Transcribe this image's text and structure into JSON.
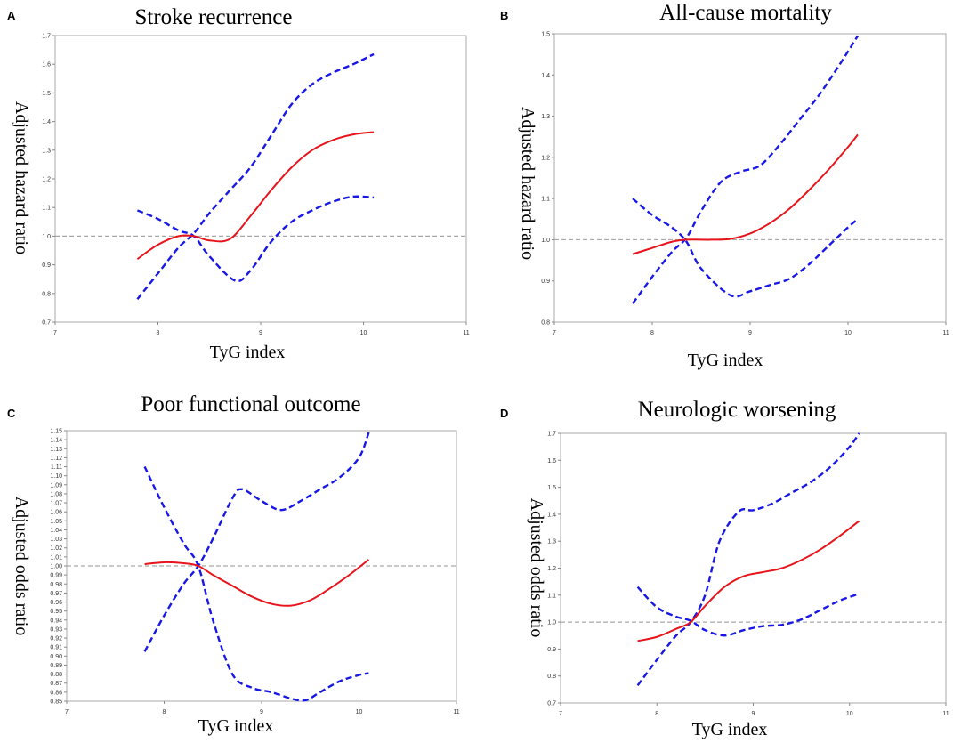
{
  "chart_data": [
    {
      "panel": "A",
      "type": "line",
      "title": "Stroke recurrence",
      "xlabel": "TyG index",
      "ylabel": "Adjusted hazard ratio",
      "xlim": [
        7,
        11
      ],
      "ylim": [
        0.7,
        1.7
      ],
      "xticks": [
        "7",
        "8",
        "9",
        "10",
        "11"
      ],
      "yticks": [
        "0.7",
        "0.8",
        "0.9",
        "1.0",
        "1.1",
        "1.2",
        "1.3",
        "1.4",
        "1.5",
        "1.6",
        "1.7"
      ],
      "reference_y": 1.0,
      "series": [
        {
          "name": "Adjusted hazard ratio",
          "style": "solid",
          "color": "#e8141b",
          "x": [
            7.8,
            8.0,
            8.2,
            8.35,
            8.5,
            8.7,
            8.9,
            9.1,
            9.3,
            9.5,
            9.7,
            9.9,
            10.1
          ],
          "y": [
            0.92,
            0.97,
            1.0,
            1.0,
            0.985,
            0.99,
            1.07,
            1.16,
            1.24,
            1.3,
            1.335,
            1.355,
            1.363
          ]
        },
        {
          "name": "Upper 95% CI",
          "style": "dashed",
          "color": "#1818e6",
          "x": [
            7.8,
            8.0,
            8.2,
            8.35,
            8.5,
            8.7,
            8.9,
            9.1,
            9.3,
            9.5,
            9.7,
            9.9,
            10.1
          ],
          "y": [
            0.78,
            0.87,
            0.96,
            1.01,
            1.08,
            1.16,
            1.24,
            1.35,
            1.46,
            1.53,
            1.57,
            1.6,
            1.635
          ]
        },
        {
          "name": "Lower 95% CI",
          "style": "dashed",
          "color": "#1818e6",
          "x": [
            7.8,
            8.0,
            8.2,
            8.35,
            8.5,
            8.75,
            8.9,
            9.1,
            9.3,
            9.5,
            9.7,
            9.9,
            10.1
          ],
          "y": [
            1.09,
            1.06,
            1.02,
            1.0,
            0.93,
            0.845,
            0.88,
            0.98,
            1.05,
            1.09,
            1.12,
            1.138,
            1.135
          ]
        }
      ]
    },
    {
      "panel": "B",
      "type": "line",
      "title": "All-cause mortality",
      "xlabel": "TyG index",
      "ylabel": "Adjusted hazard ratio",
      "xlim": [
        7,
        11
      ],
      "ylim": [
        0.8,
        1.5
      ],
      "xticks": [
        "7",
        "8",
        "9",
        "10",
        "11"
      ],
      "yticks": [
        "0.8",
        "0.9",
        "1.0",
        "1.1",
        "1.2",
        "1.3",
        "1.4",
        "1.5"
      ],
      "reference_y": 1.0,
      "series": [
        {
          "name": "Adjusted hazard ratio",
          "style": "solid",
          "color": "#e8141b",
          "x": [
            7.8,
            8.0,
            8.2,
            8.35,
            8.6,
            8.8,
            9.0,
            9.2,
            9.4,
            9.6,
            9.8,
            10.0,
            10.1
          ],
          "y": [
            0.965,
            0.98,
            0.995,
            1.0,
            1.0,
            1.002,
            1.015,
            1.04,
            1.075,
            1.12,
            1.17,
            1.225,
            1.255
          ]
        },
        {
          "name": "Upper 95% CI",
          "style": "dashed",
          "color": "#1818e6",
          "x": [
            7.8,
            8.0,
            8.2,
            8.35,
            8.5,
            8.7,
            8.9,
            9.1,
            9.3,
            9.5,
            9.7,
            9.9,
            10.1
          ],
          "y": [
            0.845,
            0.91,
            0.97,
            1.005,
            1.07,
            1.14,
            1.165,
            1.18,
            1.23,
            1.29,
            1.35,
            1.42,
            1.495
          ]
        },
        {
          "name": "Lower 95% CI",
          "style": "dashed",
          "color": "#1818e6",
          "x": [
            7.8,
            8.0,
            8.2,
            8.35,
            8.5,
            8.8,
            9.0,
            9.2,
            9.4,
            9.6,
            9.8,
            10.0,
            10.1
          ],
          "y": [
            1.1,
            1.06,
            1.03,
            0.995,
            0.93,
            0.865,
            0.875,
            0.89,
            0.905,
            0.94,
            0.985,
            1.03,
            1.05
          ]
        }
      ]
    },
    {
      "panel": "C",
      "type": "line",
      "title": "Poor functional outcome",
      "xlabel": "TyG index",
      "ylabel": "Adjusted odds ratio",
      "xlim": [
        7,
        11
      ],
      "ylim": [
        0.85,
        1.15
      ],
      "xticks": [
        "7",
        "8",
        "9",
        "10",
        "11"
      ],
      "yticks": [
        "0.85",
        "0.86",
        "0.87",
        "0.88",
        "0.89",
        "0.90",
        "0.91",
        "0.92",
        "0.93",
        "0.94",
        "0.95",
        "0.96",
        "0.97",
        "0.98",
        "0.99",
        "1.00",
        "1.01",
        "1.02",
        "1.03",
        "1.04",
        "1.05",
        "1.06",
        "1.07",
        "1.08",
        "1.09",
        "1.10",
        "1.11",
        "1.12",
        "1.13",
        "1.14",
        "1.15"
      ],
      "reference_y": 1.0,
      "series": [
        {
          "name": "Adjusted odds ratio",
          "style": "solid",
          "color": "#e8141b",
          "x": [
            7.8,
            8.0,
            8.2,
            8.35,
            8.5,
            8.7,
            8.9,
            9.1,
            9.3,
            9.5,
            9.7,
            9.9,
            10.1
          ],
          "y": [
            1.002,
            1.004,
            1.003,
            1.0,
            0.99,
            0.978,
            0.966,
            0.958,
            0.956,
            0.962,
            0.975,
            0.99,
            1.007
          ]
        },
        {
          "name": "Upper 95% CI",
          "style": "dashed",
          "color": "#1818e6",
          "x": [
            7.8,
            8.0,
            8.2,
            8.35,
            8.5,
            8.7,
            8.8,
            9.0,
            9.2,
            9.4,
            9.6,
            9.8,
            10.0,
            10.1
          ],
          "y": [
            0.905,
            0.945,
            0.98,
            1.0,
            1.03,
            1.075,
            1.085,
            1.072,
            1.062,
            1.072,
            1.085,
            1.098,
            1.12,
            1.148
          ]
        },
        {
          "name": "Lower 95% CI",
          "style": "dashed",
          "color": "#1818e6",
          "x": [
            7.8,
            8.0,
            8.2,
            8.35,
            8.5,
            8.7,
            8.9,
            9.1,
            9.3,
            9.45,
            9.6,
            9.8,
            10.0,
            10.1
          ],
          "y": [
            1.11,
            1.065,
            1.025,
            1.0,
            0.94,
            0.88,
            0.865,
            0.86,
            0.853,
            0.851,
            0.86,
            0.872,
            0.879,
            0.881
          ]
        }
      ]
    },
    {
      "panel": "D",
      "type": "line",
      "title": "Neurologic worsening",
      "xlabel": "TyG index",
      "ylabel": "Adjusted odds ratio",
      "xlim": [
        7,
        11
      ],
      "ylim": [
        0.7,
        1.7
      ],
      "xticks": [
        "7",
        "8",
        "9",
        "10",
        "11"
      ],
      "yticks": [
        "0.7",
        "0.8",
        "0.9",
        "1.0",
        "1.1",
        "1.2",
        "1.3",
        "1.4",
        "1.5",
        "1.6",
        "1.7"
      ],
      "reference_y": 1.0,
      "series": [
        {
          "name": "Adjusted odds ratio",
          "style": "solid",
          "color": "#e8141b",
          "x": [
            7.8,
            8.0,
            8.2,
            8.35,
            8.5,
            8.7,
            8.9,
            9.1,
            9.3,
            9.5,
            9.7,
            9.9,
            10.1
          ],
          "y": [
            0.93,
            0.945,
            0.975,
            1.0,
            1.06,
            1.13,
            1.17,
            1.185,
            1.2,
            1.23,
            1.27,
            1.32,
            1.375
          ]
        },
        {
          "name": "Upper 95% CI",
          "style": "dashed",
          "color": "#1818e6",
          "x": [
            7.8,
            8.0,
            8.2,
            8.35,
            8.5,
            8.65,
            8.85,
            9.0,
            9.2,
            9.4,
            9.6,
            9.8,
            10.0,
            10.1
          ],
          "y": [
            0.765,
            0.86,
            0.95,
            1.0,
            1.1,
            1.3,
            1.41,
            1.415,
            1.44,
            1.48,
            1.52,
            1.575,
            1.65,
            1.7
          ]
        },
        {
          "name": "Lower 95% CI",
          "style": "dashed",
          "color": "#1818e6",
          "x": [
            7.8,
            8.0,
            8.2,
            8.35,
            8.5,
            8.7,
            8.9,
            9.1,
            9.3,
            9.5,
            9.7,
            9.9,
            10.1
          ],
          "y": [
            1.13,
            1.055,
            1.02,
            1.005,
            0.97,
            0.95,
            0.97,
            0.985,
            0.99,
            1.01,
            1.045,
            1.08,
            1.105
          ]
        }
      ]
    }
  ]
}
